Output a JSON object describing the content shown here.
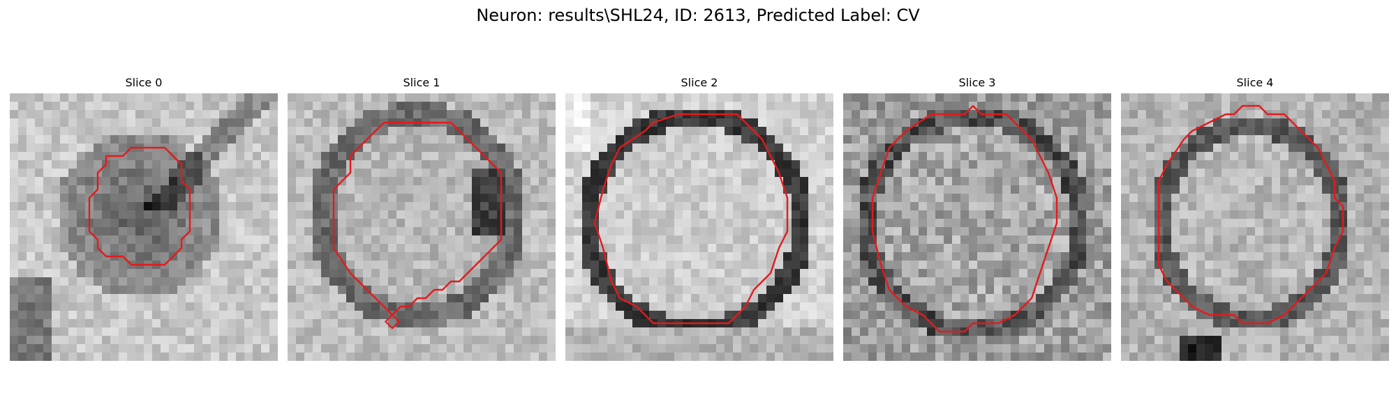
{
  "figure": {
    "title": "Neuron: results\\SHL24, ID: 2613, Predicted Label: CV",
    "contour_color": "#e41a1c"
  },
  "panels": [
    {
      "label": "Slice 0"
    },
    {
      "label": "Slice 1"
    },
    {
      "label": "Slice 2"
    },
    {
      "label": "Slice 3"
    },
    {
      "label": "Slice 4"
    }
  ]
}
